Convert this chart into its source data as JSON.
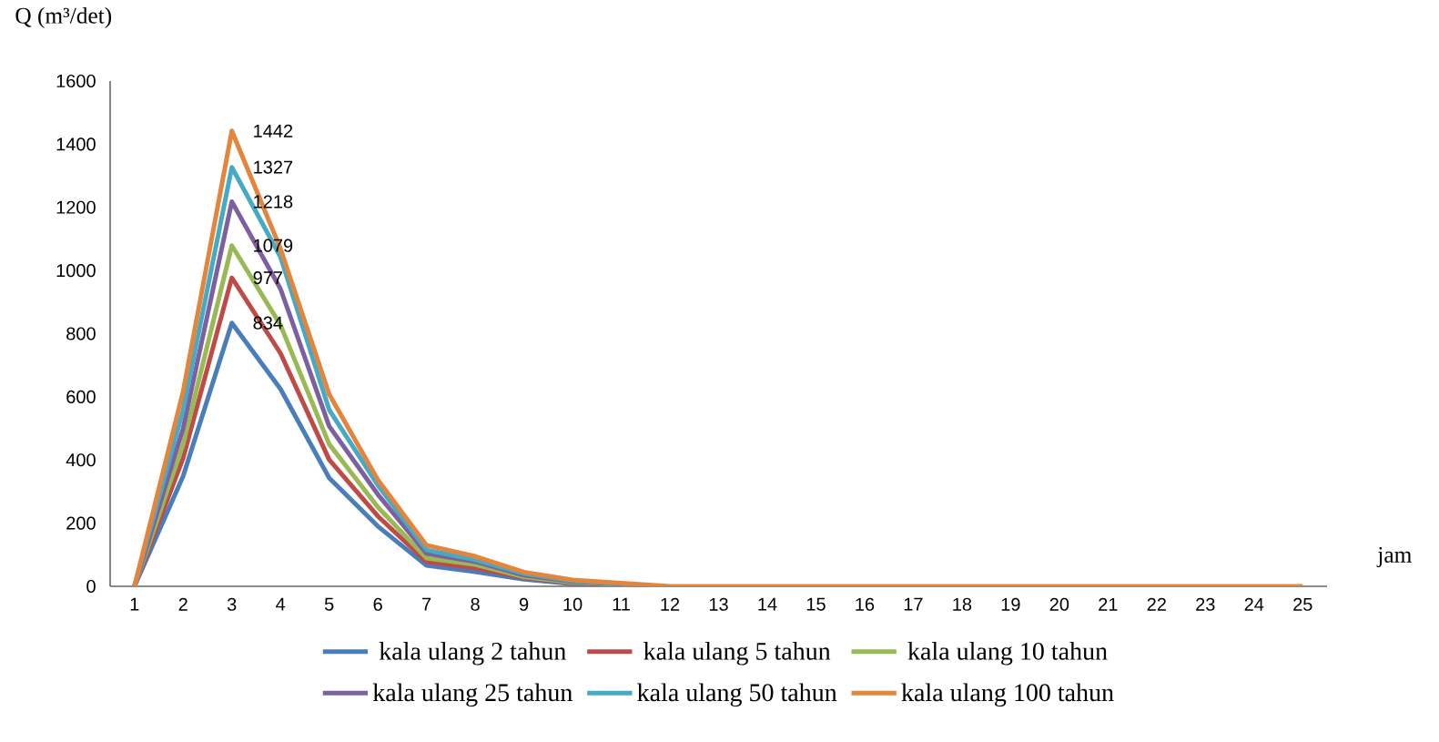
{
  "chart_data": {
    "type": "line",
    "ylabel": "Q (m³/det)",
    "xlabel": "jam",
    "categories": [
      "1",
      "2",
      "3",
      "4",
      "5",
      "6",
      "7",
      "8",
      "9",
      "10",
      "11",
      "12",
      "13",
      "14",
      "15",
      "16",
      "17",
      "18",
      "19",
      "20",
      "21",
      "22",
      "23",
      "24",
      "25"
    ],
    "ylim": [
      0,
      1600
    ],
    "yticks": [
      0,
      200,
      400,
      600,
      800,
      1000,
      1200,
      1400,
      1600
    ],
    "legend": "bottom",
    "line_style": "solid",
    "series": [
      {
        "name": "kala ulang 2 tahun",
        "color": "#4a7ebb",
        "values": [
          0,
          349,
          834,
          625,
          343,
          190,
          66,
          46,
          22,
          8,
          4,
          null,
          null,
          null,
          null,
          null,
          null,
          null,
          null,
          null,
          null,
          null,
          null,
          null,
          null
        ],
        "value_labels": [
          null,
          null,
          "834",
          null,
          null,
          null,
          null,
          null,
          null,
          null,
          null,
          null,
          null,
          null,
          null,
          null,
          null,
          null,
          null,
          null,
          null,
          null,
          null,
          null,
          null
        ]
      },
      {
        "name": "kala ulang 5 tahun",
        "color": "#be4b48",
        "values": [
          0,
          406,
          977,
          738,
          401,
          222,
          78,
          58,
          27,
          10,
          5,
          null,
          null,
          null,
          null,
          null,
          null,
          null,
          null,
          null,
          null,
          null,
          null,
          null,
          null
        ],
        "value_labels": [
          null,
          null,
          "977",
          null,
          null,
          null,
          null,
          null,
          null,
          null,
          null,
          null,
          null,
          null,
          null,
          null,
          null,
          null,
          null,
          null,
          null,
          null,
          null,
          null,
          null
        ]
      },
      {
        "name": "kala ulang 10 tahun",
        "color": "#98b954",
        "values": [
          0,
          450,
          1079,
          827,
          450,
          251,
          89,
          69,
          30,
          12,
          6,
          null,
          null,
          null,
          null,
          null,
          null,
          null,
          null,
          null,
          null,
          null,
          null,
          null,
          null
        ],
        "value_labels": [
          null,
          null,
          "1079",
          null,
          null,
          null,
          null,
          null,
          null,
          null,
          null,
          null,
          null,
          null,
          null,
          null,
          null,
          null,
          null,
          null,
          null,
          null,
          null,
          null,
          null
        ]
      },
      {
        "name": "kala ulang 25 tahun",
        "color": "#7d60a0",
        "values": [
          0,
          501,
          1218,
          942,
          507,
          291,
          104,
          78,
          35,
          15,
          7,
          null,
          null,
          null,
          null,
          null,
          null,
          null,
          null,
          null,
          null,
          null,
          null,
          null,
          null
        ],
        "value_labels": [
          null,
          null,
          "1218",
          null,
          null,
          null,
          null,
          null,
          null,
          null,
          null,
          null,
          null,
          null,
          null,
          null,
          null,
          null,
          null,
          null,
          null,
          null,
          null,
          null,
          null
        ]
      },
      {
        "name": "kala ulang 50 tahun",
        "color": "#46aac5",
        "values": [
          0,
          559,
          1327,
          1043,
          559,
          320,
          115,
          84,
          40,
          17,
          8,
          null,
          null,
          null,
          null,
          null,
          null,
          null,
          null,
          null,
          null,
          null,
          null,
          null,
          null
        ],
        "value_labels": [
          null,
          null,
          "1327",
          null,
          null,
          null,
          null,
          null,
          null,
          null,
          null,
          null,
          null,
          null,
          null,
          null,
          null,
          null,
          null,
          null,
          null,
          null,
          null,
          null,
          null
        ]
      },
      {
        "name": "kala ulang 100 tahun",
        "color": "#e3853c",
        "values": [
          0,
          617,
          1442,
          1069,
          608,
          337,
          130,
          95,
          45,
          20,
          10,
          0,
          0,
          0,
          0,
          0,
          0,
          0,
          0,
          0,
          0,
          0,
          0,
          0,
          0
        ],
        "value_labels": [
          null,
          null,
          "1442",
          null,
          null,
          null,
          null,
          null,
          null,
          null,
          null,
          null,
          null,
          null,
          null,
          null,
          null,
          null,
          null,
          null,
          null,
          null,
          null,
          null,
          null
        ]
      }
    ]
  }
}
